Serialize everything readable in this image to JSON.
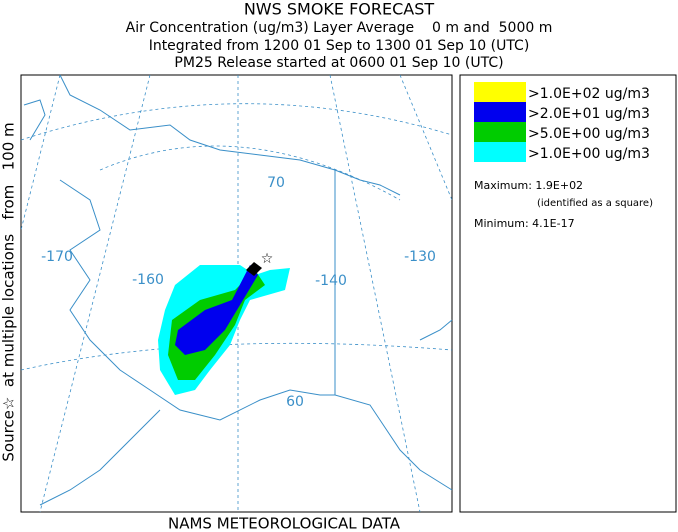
{
  "header": {
    "title": "NWS SMOKE FORECAST",
    "line1": "Air Concentration (ug/m3) Layer Average    0 m and  5000 m",
    "line2": "Integrated from 1200 01 Sep to 1300 01 Sep 10 (UTC)",
    "line3": "PM25 Release started at 0600 01 Sep 10 (UTC)"
  },
  "side_label": "Source☆  at multiple locations   from   100 m",
  "map": {
    "labels": [
      "-170",
      "-160",
      "-140",
      "-130",
      "70",
      "60"
    ]
  },
  "legend": {
    "entries": [
      ">1.0E+02 ug/m3",
      ">2.0E+01 ug/m3",
      ">5.0E+00 ug/m3",
      ">1.0E+00 ug/m3"
    ],
    "maximum": "Maximum: 1.9E+02",
    "identified": "(identified as a square)",
    "minimum": "Minimum: 4.1E-17"
  },
  "footer": "NAMS METEOROLOGICAL DATA"
}
